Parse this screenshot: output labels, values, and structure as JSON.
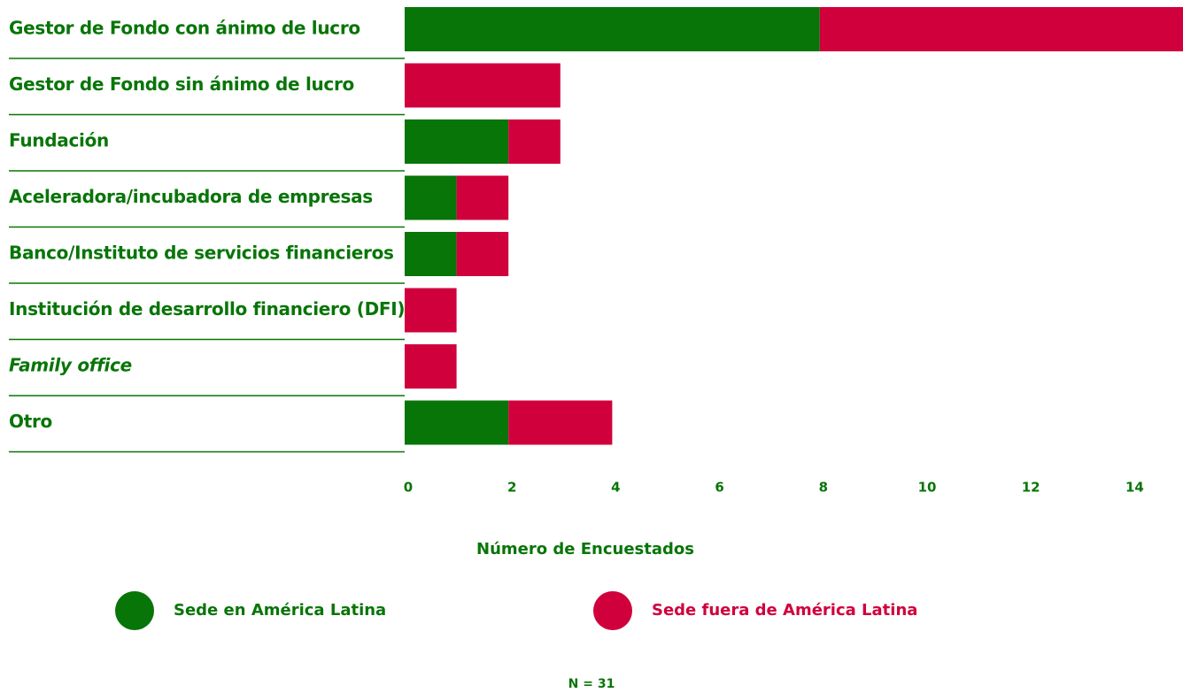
{
  "chart_data": {
    "type": "stacked_barh",
    "categories": [
      "Gestor de Fondo con ánimo de lucro",
      "Gestor de Fondo sin ánimo de lucro",
      "Fundación",
      "Aceleradora/incubadora de empresas",
      "Banco/Instituto de servicios financieros",
      "Institución de desarrollo financiero (DFI)",
      "Family office",
      "Otro"
    ],
    "series": [
      {
        "name": "Sede en América Latina",
        "color": "#087508",
        "values": [
          8,
          0,
          2,
          1,
          1,
          0,
          0,
          2
        ]
      },
      {
        "name": "Sede fuera de América Latina",
        "color": "#d0003c",
        "values": [
          7,
          3,
          1,
          1,
          1,
          1,
          1,
          2
        ]
      }
    ],
    "xlim": [
      0,
      15
    ],
    "xticks": [
      0,
      2,
      4,
      6,
      8,
      10,
      12,
      14
    ],
    "xlabel": "Número de Encuestados",
    "note": "N = 31"
  }
}
